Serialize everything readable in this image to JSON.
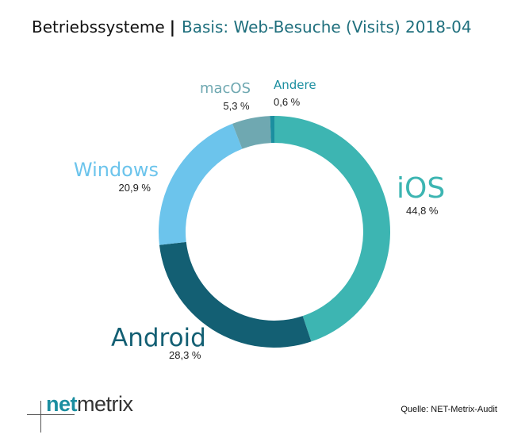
{
  "title": {
    "prefix": "Betriebssysteme",
    "separator": "|",
    "basis": "Basis: Web-Besuche (Visits) 2018-04"
  },
  "chart_data": {
    "type": "pie",
    "style": "donut",
    "title": "Betriebssysteme | Basis: Web-Besuche (Visits) 2018-04",
    "unit": "%",
    "slices": [
      {
        "name": "iOS",
        "value": 44.8,
        "label": "44,8 %",
        "color": "#3db5b2"
      },
      {
        "name": "Android",
        "value": 28.3,
        "label": "28,3 %",
        "color": "#135f73"
      },
      {
        "name": "Windows",
        "value": 20.9,
        "label": "20,9 %",
        "color": "#6cc4ec"
      },
      {
        "name": "macOS",
        "value": 5.3,
        "label": "5,3 %",
        "color": "#6fa8b1"
      },
      {
        "name": "Andere",
        "value": 0.6,
        "label": "0,6 %",
        "color": "#1b8ea0"
      }
    ]
  },
  "footer": {
    "logo_net": "net",
    "logo_metrix": "metrix",
    "source": "Quelle: NET-Metrix-Audit"
  }
}
